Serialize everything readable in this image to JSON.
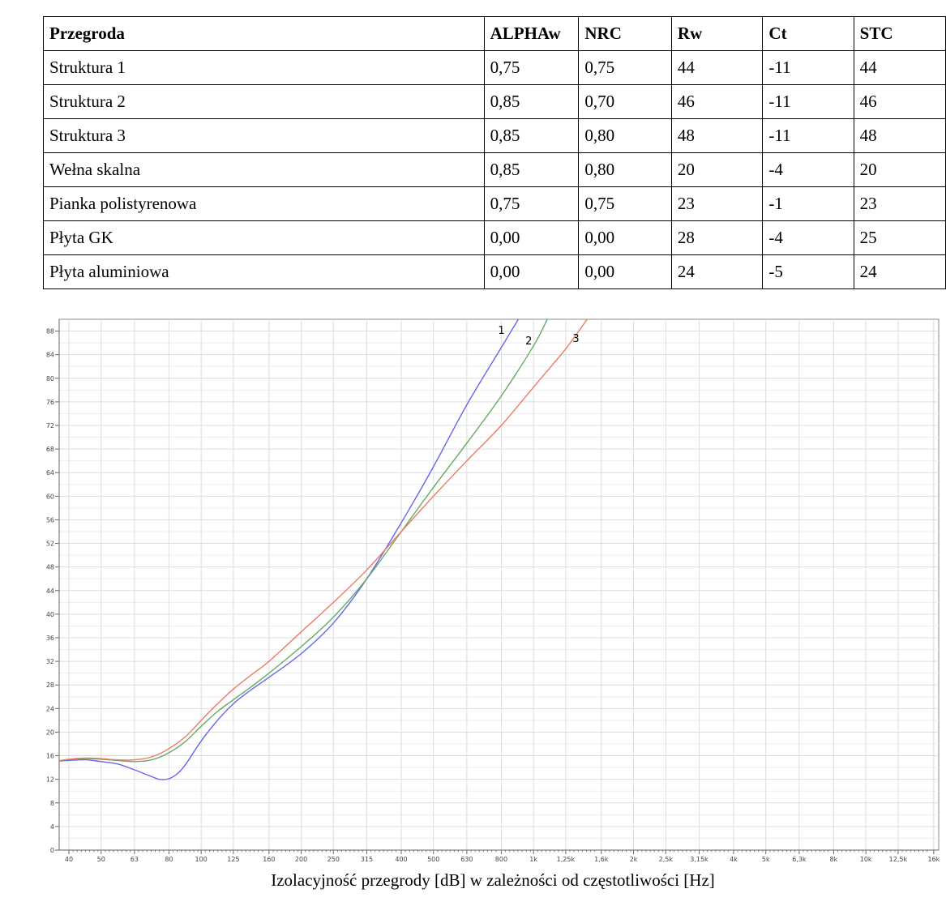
{
  "table": {
    "headers": [
      "Przegroda",
      "ALPHAw",
      "NRC",
      "Rw",
      "Ct",
      "STC"
    ],
    "rows": [
      [
        "Struktura 1",
        "0,75",
        "0,75",
        "44",
        "-11",
        "44"
      ],
      [
        "Struktura 2",
        "0,85",
        "0,70",
        "46",
        "-11",
        "46"
      ],
      [
        "Struktura 3",
        "0,85",
        "0,80",
        "48",
        "-11",
        "48"
      ],
      [
        "Wełna skalna",
        "0,85",
        "0,80",
        "20",
        "-4",
        "20"
      ],
      [
        "Pianka polistyrenowa",
        "0,75",
        "0,75",
        "23",
        "-1",
        "23"
      ],
      [
        "Płyta GK",
        "0,00",
        "0,00",
        "28",
        "-4",
        "25"
      ],
      [
        "Płyta aluminiowa",
        "0,00",
        "0,00",
        "24",
        "-5",
        "24"
      ]
    ]
  },
  "chart_data": {
    "type": "line",
    "title": "",
    "xlabel": "Izolacyjność przegrody [dB] w zależności od częstotliwości [Hz]",
    "ylabel": "",
    "x_scale": "log",
    "ylim": [
      0,
      90
    ],
    "grid": true,
    "x_tick_values": [
      40,
      50,
      63,
      80,
      100,
      125,
      160,
      200,
      250,
      315,
      400,
      500,
      630,
      800,
      1000,
      1250,
      1600,
      2000,
      2500,
      3150,
      4000,
      5000,
      6300,
      8000,
      10000,
      12500,
      16000
    ],
    "x_tick_labels": [
      "40",
      "50",
      "63",
      "80",
      "100",
      "125",
      "160",
      "200",
      "250",
      "315",
      "400",
      "500",
      "630",
      "800",
      "1k",
      "1,25k",
      "1,6k",
      "2k",
      "2,5k",
      "3,15k",
      "4k",
      "5k",
      "6,3k",
      "8k",
      "10k",
      "12,5k",
      "16k"
    ],
    "y_ticks": [
      0,
      4,
      8,
      12,
      16,
      20,
      24,
      28,
      32,
      36,
      40,
      44,
      48,
      52,
      56,
      60,
      64,
      68,
      72,
      76,
      80,
      84,
      88
    ],
    "series": [
      {
        "name": "1",
        "color": "#6666ee",
        "points": [
          [
            36,
            15.0
          ],
          [
            40,
            15.2
          ],
          [
            45,
            15.3
          ],
          [
            50,
            15.0
          ],
          [
            56,
            14.6
          ],
          [
            63,
            13.6
          ],
          [
            70,
            12.6
          ],
          [
            75,
            12.0
          ],
          [
            80,
            12.1
          ],
          [
            85,
            13.0
          ],
          [
            90,
            14.6
          ],
          [
            100,
            18.5
          ],
          [
            112,
            22.0
          ],
          [
            125,
            24.8
          ],
          [
            140,
            27.0
          ],
          [
            160,
            29.3
          ],
          [
            200,
            33.3
          ],
          [
            250,
            38.5
          ],
          [
            315,
            46.0
          ],
          [
            400,
            55.5
          ],
          [
            500,
            65.0
          ],
          [
            630,
            75.5
          ],
          [
            800,
            85.2
          ],
          [
            900,
            90.0
          ]
        ]
      },
      {
        "name": "2",
        "color": "#66aa66",
        "points": [
          [
            36,
            15.0
          ],
          [
            40,
            15.3
          ],
          [
            45,
            15.5
          ],
          [
            50,
            15.4
          ],
          [
            56,
            15.2
          ],
          [
            63,
            15.0
          ],
          [
            71,
            15.3
          ],
          [
            80,
            16.5
          ],
          [
            90,
            18.5
          ],
          [
            100,
            21.0
          ],
          [
            112,
            23.5
          ],
          [
            125,
            25.5
          ],
          [
            140,
            27.5
          ],
          [
            160,
            30.0
          ],
          [
            200,
            34.5
          ],
          [
            250,
            39.5
          ],
          [
            315,
            46.0
          ],
          [
            400,
            54.0
          ],
          [
            500,
            61.5
          ],
          [
            630,
            69.0
          ],
          [
            800,
            77.0
          ],
          [
            1000,
            85.5
          ],
          [
            1100,
            90.0
          ]
        ]
      },
      {
        "name": "3",
        "color": "#ee7766",
        "points": [
          [
            36,
            15.0
          ],
          [
            40,
            15.4
          ],
          [
            45,
            15.6
          ],
          [
            50,
            15.5
          ],
          [
            56,
            15.3
          ],
          [
            63,
            15.3
          ],
          [
            71,
            15.8
          ],
          [
            80,
            17.2
          ],
          [
            90,
            19.3
          ],
          [
            100,
            22.0
          ],
          [
            112,
            24.8
          ],
          [
            125,
            27.3
          ],
          [
            140,
            29.5
          ],
          [
            160,
            32.0
          ],
          [
            200,
            37.0
          ],
          [
            250,
            42.0
          ],
          [
            315,
            47.5
          ],
          [
            400,
            54.0
          ],
          [
            500,
            60.0
          ],
          [
            630,
            66.0
          ],
          [
            800,
            72.0
          ],
          [
            1000,
            78.5
          ],
          [
            1250,
            85.0
          ],
          [
            1450,
            90.0
          ]
        ]
      }
    ]
  }
}
